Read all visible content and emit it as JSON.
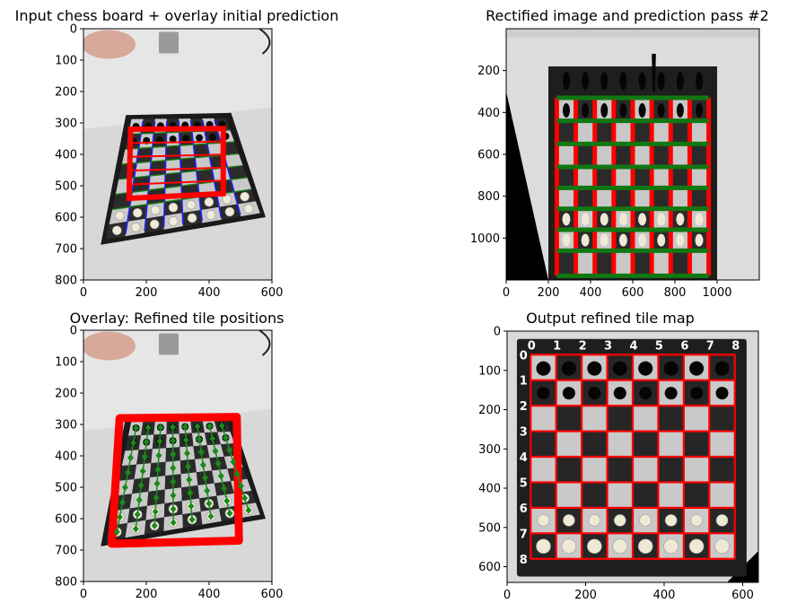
{
  "chart_data": [
    {
      "type": "image",
      "title": "Input chess board + overlay initial prediction",
      "xlim": [
        0,
        600
      ],
      "ylim": [
        800,
        0
      ],
      "xticks": [
        0,
        200,
        400,
        600
      ],
      "yticks": [
        0,
        100,
        200,
        300,
        400,
        500,
        600,
        700,
        800
      ],
      "board_corners": [
        [
          135,
          275
        ],
        [
          470,
          268
        ],
        [
          580,
          600
        ],
        [
          55,
          688
        ]
      ],
      "initial_box": [
        [
          150,
          320
        ],
        [
          445,
          318
        ],
        [
          445,
          525
        ],
        [
          145,
          540
        ]
      ],
      "colors": {
        "box": "#ff0000",
        "vertical_lines": "#1f1fff",
        "horizontal_lines": "#1a7a1a"
      }
    },
    {
      "type": "image",
      "title": "Rectified image and prediction pass #2",
      "xlim": [
        0,
        1200
      ],
      "ylim": [
        1200,
        0
      ],
      "xticks": [
        0,
        200,
        400,
        600,
        800,
        1000
      ],
      "yticks": [
        200,
        400,
        600,
        800,
        1000
      ],
      "vertical_lines_x": [
        240,
        330,
        420,
        510,
        600,
        690,
        780,
        870,
        960
      ],
      "horizontal_lines_y": [
        330,
        440,
        550,
        660,
        760,
        860,
        960,
        1060,
        1180
      ],
      "colors": {
        "vertical_lines": "#ff0000",
        "horizontal_lines": "#117711"
      }
    },
    {
      "type": "image",
      "title": "Overlay: Refined tile positions",
      "xlim": [
        0,
        600
      ],
      "ylim": [
        800,
        0
      ],
      "xticks": [
        0,
        200,
        400,
        600
      ],
      "yticks": [
        0,
        100,
        200,
        300,
        400,
        500,
        600,
        700,
        800
      ],
      "board_corners": [
        [
          135,
          275
        ],
        [
          470,
          268
        ],
        [
          580,
          600
        ],
        [
          55,
          688
        ]
      ],
      "refined_outline": [
        [
          115,
          280
        ],
        [
          488,
          276
        ],
        [
          495,
          670
        ],
        [
          90,
          680
        ]
      ],
      "colors": {
        "outline": "#ff0000",
        "points": "#1a8a1a"
      }
    },
    {
      "type": "image",
      "title": "Output refined tile map",
      "xlim": [
        0,
        640
      ],
      "ylim": [
        640,
        0
      ],
      "xticks": [
        0,
        200,
        400,
        600
      ],
      "yticks": [
        0,
        100,
        200,
        300,
        400,
        500,
        600
      ],
      "grid_x": [
        60,
        125,
        190,
        255,
        320,
        385,
        450,
        515,
        580
      ],
      "grid_y": [
        60,
        125,
        190,
        255,
        320,
        385,
        450,
        515,
        580
      ],
      "col_labels": [
        "0",
        "1",
        "2",
        "3",
        "4",
        "5",
        "6",
        "7",
        "8"
      ],
      "row_labels": [
        "0",
        "1",
        "2",
        "3",
        "4",
        "5",
        "6",
        "7",
        "8"
      ],
      "colors": {
        "grid": "#ff0000"
      }
    }
  ]
}
